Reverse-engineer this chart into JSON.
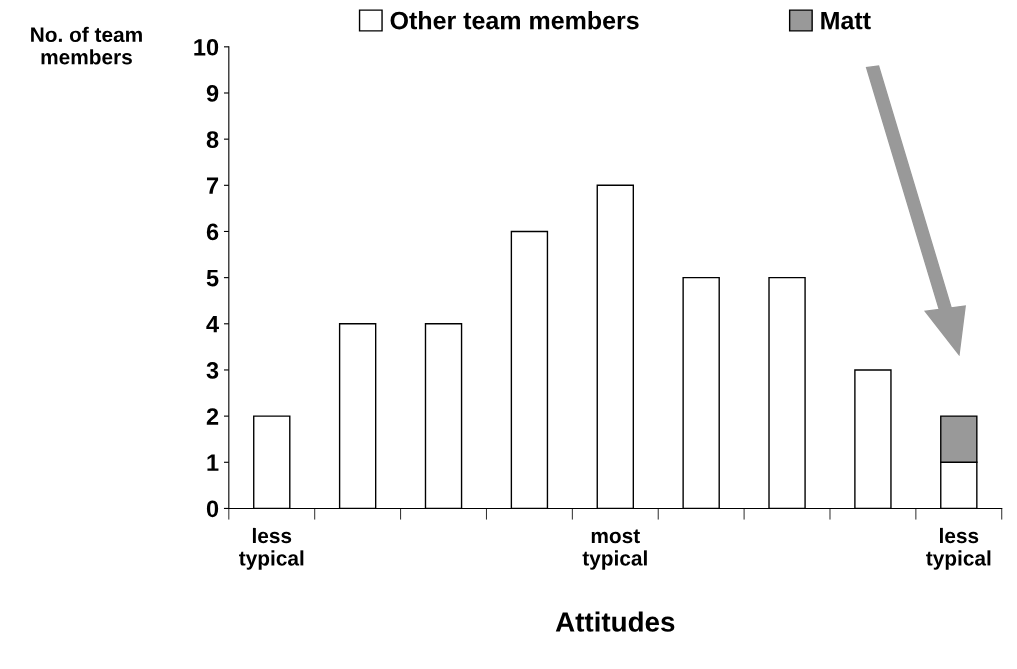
{
  "chart_data": {
    "type": "bar",
    "stacked": true,
    "xlabel": "Attitudes",
    "ylabel": "No. of team\nmembers",
    "categories": [
      "less\ntypical",
      null,
      null,
      null,
      "most\ntypical",
      null,
      null,
      null,
      "less\ntypical"
    ],
    "series": [
      {
        "name": "Other team members",
        "color": "#ffffff",
        "values": [
          2,
          4,
          4,
          6,
          7,
          5,
          5,
          3,
          1
        ]
      },
      {
        "name": "Matt",
        "color": "#999999",
        "values": [
          null,
          null,
          null,
          null,
          null,
          null,
          null,
          null,
          1
        ]
      }
    ],
    "ylim": [
      0,
      10
    ],
    "yticks": [
      0,
      1,
      2,
      3,
      4,
      5,
      6,
      7,
      8,
      9,
      10
    ],
    "legend": "top",
    "grid": false
  }
}
